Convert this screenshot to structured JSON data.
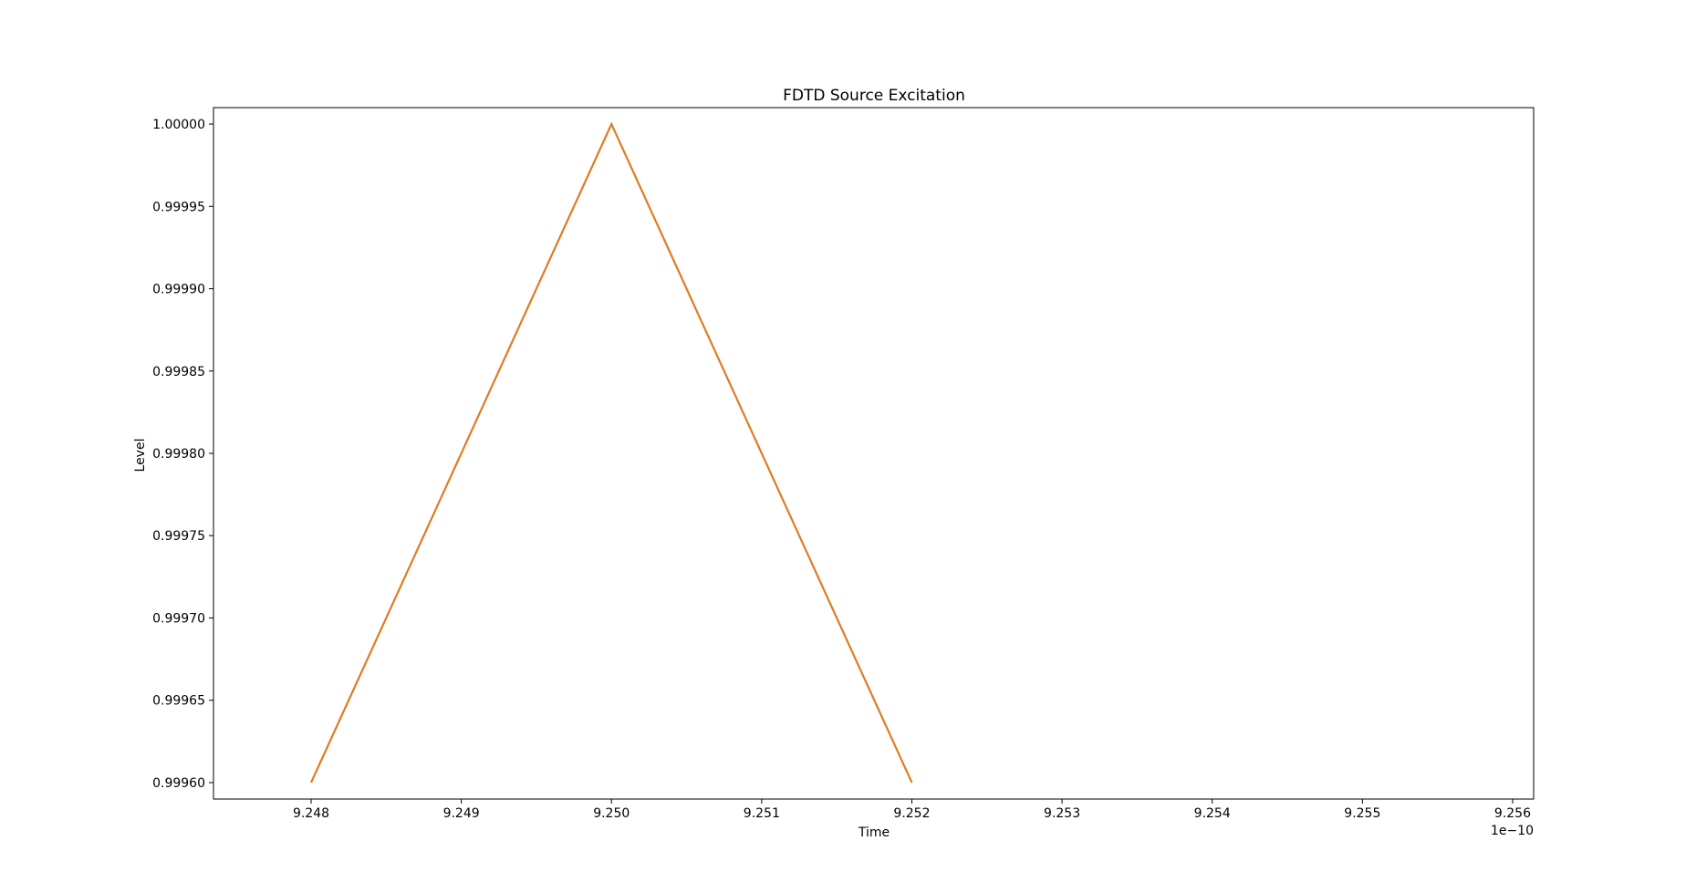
{
  "chart_data": {
    "type": "line",
    "title": "FDTD Source Excitation",
    "xlabel": "Time",
    "ylabel": "Level",
    "x_offset_text": "1e−10",
    "xlim": [
      9.24735e-10,
      9.25614e-10
    ],
    "ylim": [
      0.99959,
      1.00001
    ],
    "x_ticks": [
      9.248e-10,
      9.249e-10,
      9.25e-10,
      9.251e-10,
      9.252e-10,
      9.253e-10,
      9.254e-10,
      9.255e-10,
      9.256e-10
    ],
    "x_tick_labels": [
      "9.248",
      "9.249",
      "9.250",
      "9.251",
      "9.252",
      "9.253",
      "9.254",
      "9.255",
      "9.256"
    ],
    "y_ticks": [
      0.9996,
      0.99965,
      0.9997,
      0.99975,
      0.9998,
      0.99985,
      0.9999,
      0.99995,
      1.0
    ],
    "y_tick_labels": [
      "0.99960",
      "0.99965",
      "0.99970",
      "0.99975",
      "0.99980",
      "0.99985",
      "0.99990",
      "0.99995",
      "1.00000"
    ],
    "grid": false,
    "series": [
      {
        "color": "#e07b22",
        "x": [
          9.248e-10,
          9.25e-10,
          9.252e-10
        ],
        "y": [
          0.9996,
          1.0,
          0.9996
        ]
      }
    ]
  }
}
